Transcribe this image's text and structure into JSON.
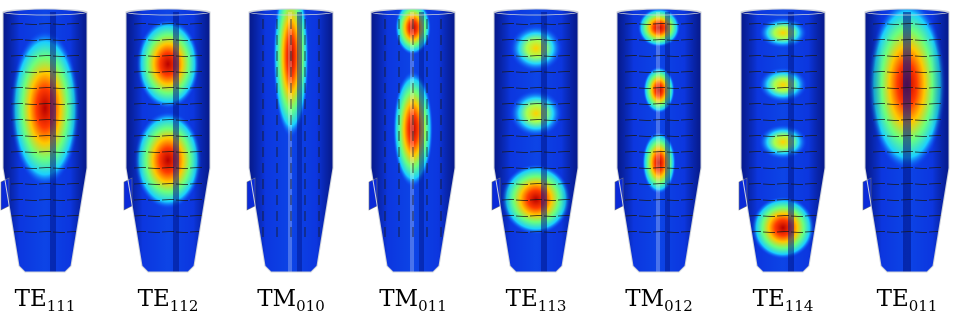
{
  "figure": {
    "panels": [
      {
        "id": "te111",
        "family": "TE",
        "index": "111",
        "lobes": [
          {
            "v": 0.37,
            "w": 0.66,
            "h": 0.4,
            "i": 1.0
          }
        ],
        "splitting": "azimuthal"
      },
      {
        "id": "te112",
        "family": "TE",
        "index": "112",
        "lobes": [
          {
            "v": 0.2,
            "w": 0.6,
            "h": 0.23,
            "i": 0.95
          },
          {
            "v": 0.57,
            "w": 0.64,
            "h": 0.25,
            "i": 1.0
          }
        ],
        "splitting": "azimuthal"
      },
      {
        "id": "tm010",
        "family": "TM",
        "index": "010",
        "lobes": [
          {
            "v": 0.17,
            "w": 0.34,
            "h": 0.42,
            "i": 1.0
          }
        ],
        "splitting": "axial"
      },
      {
        "id": "tm011",
        "family": "TM",
        "index": "011",
        "lobes": [
          {
            "v": 0.06,
            "w": 0.34,
            "h": 0.14,
            "i": 0.95
          },
          {
            "v": 0.45,
            "w": 0.38,
            "h": 0.3,
            "i": 1.0
          }
        ],
        "splitting": "axial"
      },
      {
        "id": "te113",
        "family": "TE",
        "index": "113",
        "lobes": [
          {
            "v": 0.14,
            "w": 0.5,
            "h": 0.12,
            "i": 0.8
          },
          {
            "v": 0.39,
            "w": 0.5,
            "h": 0.12,
            "i": 0.75
          },
          {
            "v": 0.72,
            "w": 0.66,
            "h": 0.18,
            "i": 1.0
          }
        ],
        "splitting": "azimuthal"
      },
      {
        "id": "tm012",
        "family": "TM",
        "index": "012",
        "lobes": [
          {
            "v": 0.06,
            "w": 0.4,
            "h": 0.1,
            "i": 1.0
          },
          {
            "v": 0.3,
            "w": 0.3,
            "h": 0.12,
            "i": 0.95
          },
          {
            "v": 0.58,
            "w": 0.32,
            "h": 0.16,
            "i": 1.0
          }
        ],
        "splitting": "axial"
      },
      {
        "id": "te114",
        "family": "TE",
        "index": "114",
        "lobes": [
          {
            "v": 0.08,
            "w": 0.46,
            "h": 0.08,
            "i": 0.6
          },
          {
            "v": 0.28,
            "w": 0.46,
            "h": 0.09,
            "i": 0.6
          },
          {
            "v": 0.5,
            "w": 0.46,
            "h": 0.09,
            "i": 0.6
          },
          {
            "v": 0.83,
            "w": 0.6,
            "h": 0.16,
            "i": 1.0
          }
        ],
        "splitting": "azimuthal"
      },
      {
        "id": "te011",
        "family": "TE",
        "index": "011",
        "lobes": [
          {
            "v": 0.28,
            "w": 0.74,
            "h": 0.44,
            "i": 1.0
          }
        ],
        "splitting": "ring"
      }
    ],
    "colors": {
      "background_field": "#0a14c8",
      "outer_edge": "#cfd3da",
      "arrow": "#1a1a1a",
      "label": "#000000"
    }
  }
}
